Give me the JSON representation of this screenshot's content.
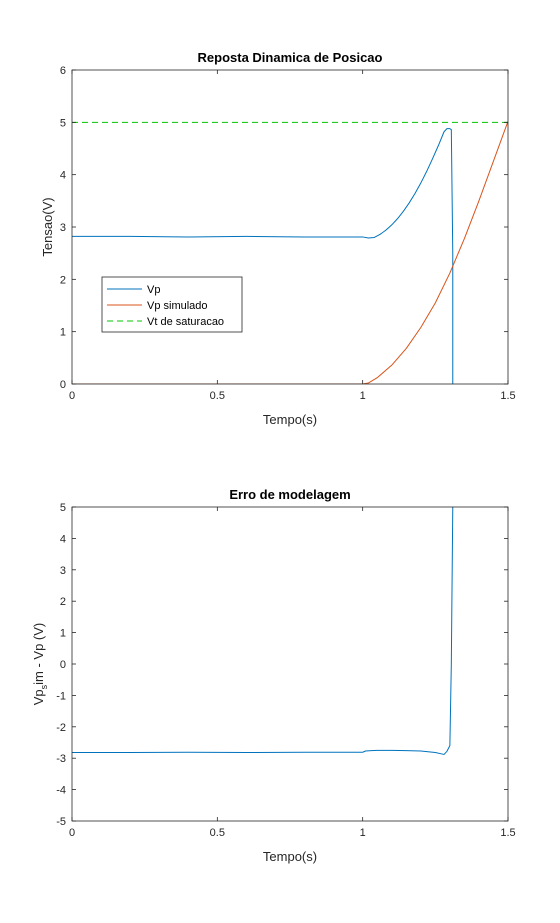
{
  "colors": {
    "vp": "#0072BD",
    "vp_simulado": "#D95319",
    "vt_saturacao": "#00C800",
    "axes": "#262626",
    "background": "#FFFFFF"
  },
  "chart_data": [
    {
      "type": "line",
      "title": "Reposta Dinamica de Posicao",
      "xlabel": "Tempo(s)",
      "ylabel": "Tensao(V)",
      "xlim": [
        0,
        1.5
      ],
      "ylim": [
        0,
        6
      ],
      "xticks": [
        0,
        0.5,
        1,
        1.5
      ],
      "xtick_labels": [
        "0",
        "0.5",
        "1",
        "1.5"
      ],
      "yticks": [
        0,
        1,
        2,
        3,
        4,
        5,
        6
      ],
      "ytick_labels": [
        "0",
        "1",
        "2",
        "3",
        "4",
        "5",
        "6"
      ],
      "grid": false,
      "legend_position": "lower-left",
      "series": [
        {
          "name": "Vp",
          "color": "#0072BD",
          "style": "solid",
          "x": [
            0,
            0.2,
            0.4,
            0.6,
            0.8,
            1.0,
            1.02,
            1.04,
            1.06,
            1.08,
            1.1,
            1.12,
            1.14,
            1.16,
            1.18,
            1.2,
            1.22,
            1.24,
            1.26,
            1.28,
            1.29,
            1.3,
            1.305,
            1.31,
            1.31
          ],
          "y": [
            2.82,
            2.82,
            2.81,
            2.82,
            2.81,
            2.81,
            2.79,
            2.8,
            2.86,
            2.94,
            3.04,
            3.16,
            3.3,
            3.46,
            3.64,
            3.84,
            4.06,
            4.3,
            4.55,
            4.82,
            4.88,
            4.88,
            4.86,
            2.5,
            0
          ]
        },
        {
          "name": "Vp simulado",
          "color": "#D95319",
          "style": "solid",
          "x": [
            0,
            0.5,
            1.0,
            1.02,
            1.05,
            1.1,
            1.15,
            1.2,
            1.25,
            1.3,
            1.35,
            1.4,
            1.45,
            1.5
          ],
          "y": [
            0,
            0,
            0,
            0.02,
            0.12,
            0.36,
            0.68,
            1.08,
            1.55,
            2.12,
            2.78,
            3.5,
            4.26,
            5.02
          ]
        },
        {
          "name": "Vt de saturacao",
          "color": "#00C800",
          "style": "dashed",
          "x": [
            0,
            1.5
          ],
          "y": [
            5,
            5
          ]
        }
      ]
    },
    {
      "type": "line",
      "title": "Erro de modelagem",
      "xlabel": "Tempo(s)",
      "ylabel_main": "Vp",
      "ylabel_sub": "s",
      "ylabel_rest": "im - Vp (V)",
      "xlim": [
        0,
        1.5
      ],
      "ylim": [
        -5,
        5
      ],
      "xticks": [
        0,
        0.5,
        1,
        1.5
      ],
      "xtick_labels": [
        "0",
        "0.5",
        "1",
        "1.5"
      ],
      "yticks": [
        -5,
        -4,
        -3,
        -2,
        -1,
        0,
        1,
        2,
        3,
        4,
        5
      ],
      "ytick_labels": [
        "-5",
        "-4",
        "-3",
        "-2",
        "-1",
        "0",
        "1",
        "2",
        "3",
        "4",
        "5"
      ],
      "grid": false,
      "series": [
        {
          "color": "#0072BD",
          "style": "solid",
          "x": [
            0,
            0.2,
            0.4,
            0.6,
            0.8,
            1.0,
            1.01,
            1.03,
            1.05,
            1.1,
            1.15,
            1.2,
            1.25,
            1.28,
            1.29,
            1.3,
            1.305,
            1.31
          ],
          "y": [
            -2.82,
            -2.82,
            -2.81,
            -2.82,
            -2.81,
            -2.81,
            -2.77,
            -2.76,
            -2.75,
            -2.75,
            -2.76,
            -2.77,
            -2.82,
            -2.88,
            -2.78,
            -2.6,
            0,
            5
          ]
        }
      ]
    }
  ]
}
